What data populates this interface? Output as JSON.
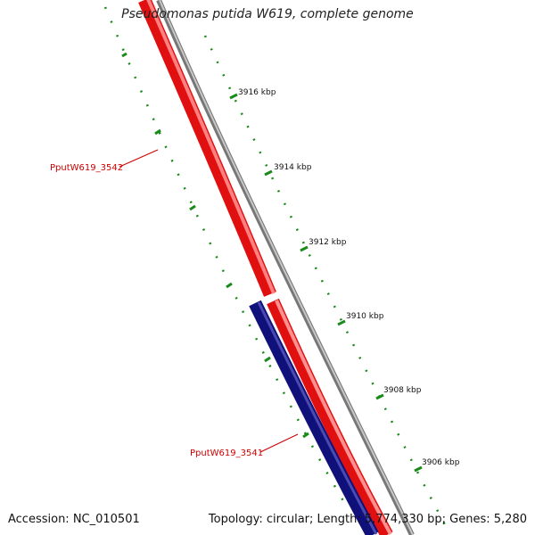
{
  "header": {
    "title": "Pseudomonas putida W619, complete genome"
  },
  "ruler": {
    "ticks": [
      {
        "label": "3916 kbp"
      },
      {
        "label": "3914 kbp"
      },
      {
        "label": "3912 kbp"
      },
      {
        "label": "3910 kbp"
      },
      {
        "label": "3908 kbp"
      },
      {
        "label": "3906 kbp"
      }
    ]
  },
  "genes": [
    {
      "name": "PputW619_3542",
      "strand": "forward",
      "color": "#ff1a1a"
    },
    {
      "name": "PputW619_3541",
      "strand": "reverse",
      "color": "#10107a"
    }
  ],
  "gene_labels": {
    "upper": "PputW619_3542",
    "lower": "PputW619_3541"
  },
  "colors": {
    "backbone": "#888888",
    "forward_gene": "#ff1a1a",
    "reverse_gene": "#10107a",
    "label_text": "#cc0000",
    "gc_ticks": "#1a8a1a"
  },
  "footer": {
    "accession": "Accession: NC_010501",
    "summary": "Topology: circular; Length: 5,774,330 bp; Genes: 5,280"
  }
}
